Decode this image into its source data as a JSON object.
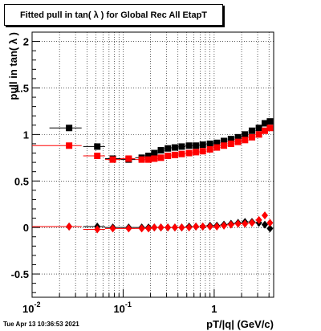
{
  "title": "Fitted pull in tan( λ ) for Global Rec All EtapT",
  "timestamp": "Tue Apr 13 10:36:53 2021",
  "chart_data": {
    "type": "scatter",
    "title": "Fitted pull in tan( λ ) for Global Rec All EtapT",
    "xlabel": "pT/|q| (GeV/c)",
    "ylabel": "pull in tan( λ )",
    "xscale": "log",
    "xlim": [
      0.01,
      4.5
    ],
    "ylim": [
      -0.75,
      2.1
    ],
    "x_ticks": [
      "10^-2",
      "10^-1",
      "1"
    ],
    "y_ticks": [
      "-0.5",
      "0",
      "0.5",
      "1",
      "1.5",
      "2"
    ],
    "grid": true,
    "series": [
      {
        "color": "#000000",
        "marker": "square",
        "points": [
          [
            0.0255,
            1.07
          ],
          [
            0.052,
            0.87
          ],
          [
            0.077,
            0.74
          ],
          [
            0.115,
            0.73
          ],
          [
            0.16,
            0.75
          ],
          [
            0.19,
            0.77
          ],
          [
            0.22,
            0.8
          ],
          [
            0.26,
            0.83
          ],
          [
            0.31,
            0.85
          ],
          [
            0.37,
            0.86
          ],
          [
            0.44,
            0.87
          ],
          [
            0.53,
            0.88
          ],
          [
            0.63,
            0.88
          ],
          [
            0.75,
            0.89
          ],
          [
            0.9,
            0.9
          ],
          [
            1.07,
            0.91
          ],
          [
            1.28,
            0.93
          ],
          [
            1.53,
            0.95
          ],
          [
            1.83,
            0.97
          ],
          [
            2.18,
            1.0
          ],
          [
            2.6,
            1.04
          ],
          [
            3.1,
            1.07
          ],
          [
            3.6,
            1.12
          ],
          [
            4.1,
            1.14
          ]
        ],
        "xerr": [
          [
            0.0155,
            0.035
          ]
        ]
      },
      {
        "color": "#ff0000",
        "marker": "square",
        "points": [
          [
            0.0255,
            0.88
          ],
          [
            0.052,
            0.77
          ],
          [
            0.077,
            0.73
          ],
          [
            0.115,
            0.74
          ],
          [
            0.16,
            0.73
          ],
          [
            0.19,
            0.73
          ],
          [
            0.22,
            0.74
          ],
          [
            0.26,
            0.75
          ],
          [
            0.31,
            0.77
          ],
          [
            0.37,
            0.78
          ],
          [
            0.44,
            0.79
          ],
          [
            0.53,
            0.8
          ],
          [
            0.63,
            0.81
          ],
          [
            0.75,
            0.82
          ],
          [
            0.9,
            0.84
          ],
          [
            1.07,
            0.86
          ],
          [
            1.28,
            0.88
          ],
          [
            1.53,
            0.9
          ],
          [
            1.83,
            0.92
          ],
          [
            2.18,
            0.94
          ],
          [
            2.6,
            0.97
          ],
          [
            3.1,
            1.0
          ],
          [
            3.6,
            1.04
          ],
          [
            4.1,
            1.07
          ]
        ],
        "xerr": [
          [
            0.0,
            0.035
          ]
        ]
      },
      {
        "color": "#000000",
        "marker": "diamond",
        "points": [
          [
            0.0255,
            0.01
          ],
          [
            0.052,
            0.01
          ],
          [
            0.077,
            0.0
          ],
          [
            0.115,
            0.0
          ],
          [
            0.16,
            0.0
          ],
          [
            0.19,
            0.0
          ],
          [
            0.22,
            0.0
          ],
          [
            0.26,
            0.0
          ],
          [
            0.31,
            0.0
          ],
          [
            0.37,
            0.0
          ],
          [
            0.44,
            0.0
          ],
          [
            0.53,
            0.01
          ],
          [
            0.63,
            0.01
          ],
          [
            0.75,
            0.01
          ],
          [
            0.9,
            0.02
          ],
          [
            1.07,
            0.02
          ],
          [
            1.28,
            0.03
          ],
          [
            1.53,
            0.04
          ],
          [
            1.83,
            0.05
          ],
          [
            2.18,
            0.06
          ],
          [
            2.6,
            0.06
          ],
          [
            3.1,
            0.05
          ],
          [
            3.6,
            0.03
          ],
          [
            4.1,
            -0.01
          ]
        ],
        "xerr": [
          [
            0.0,
            0.035
          ]
        ]
      },
      {
        "color": "#ff0000",
        "marker": "diamond",
        "points": [
          [
            0.0255,
            0.01
          ],
          [
            0.052,
            -0.02
          ],
          [
            0.077,
            -0.01
          ],
          [
            0.115,
            -0.01
          ],
          [
            0.16,
            -0.01
          ],
          [
            0.19,
            -0.01
          ],
          [
            0.22,
            0.0
          ],
          [
            0.26,
            0.0
          ],
          [
            0.31,
            0.0
          ],
          [
            0.37,
            0.0
          ],
          [
            0.44,
            0.0
          ],
          [
            0.53,
            0.0
          ],
          [
            0.63,
            0.01
          ],
          [
            0.75,
            0.01
          ],
          [
            0.9,
            0.01
          ],
          [
            1.07,
            0.01
          ],
          [
            1.28,
            0.02
          ],
          [
            1.53,
            0.03
          ],
          [
            1.83,
            0.04
          ],
          [
            2.18,
            0.04
          ],
          [
            2.6,
            0.05
          ],
          [
            3.1,
            0.08
          ],
          [
            3.6,
            0.13
          ],
          [
            4.1,
            0.05
          ]
        ],
        "xerr": [
          [
            0.0,
            0.035
          ]
        ]
      }
    ]
  }
}
